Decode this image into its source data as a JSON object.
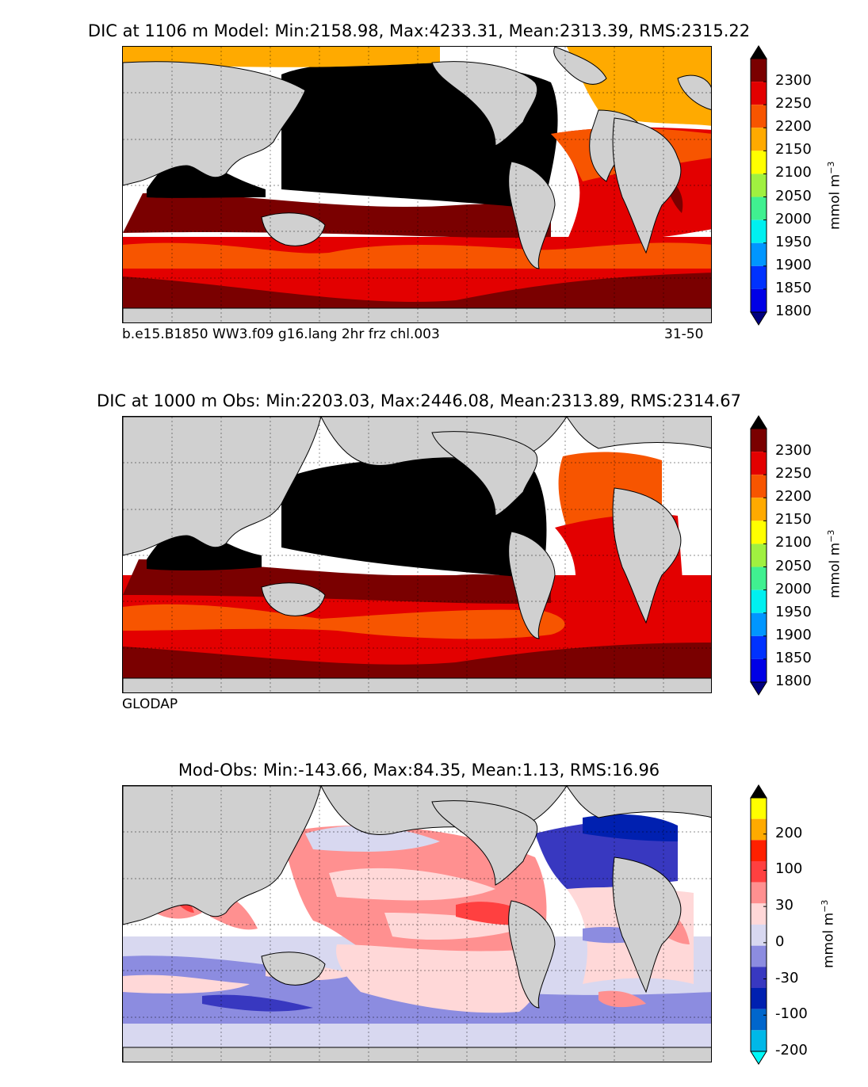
{
  "panels": [
    {
      "title": "DIC at 1106 m Model: Min:2158.98, Max:4233.31, Mean:2313.39, RMS:2315.22",
      "subtitle_left": "b.e15.B1850 WW3.f09 g16.lang 2hr frz chl.003",
      "subtitle_right": "31-50",
      "colorbar_ticks": [
        "2300",
        "2250",
        "2200",
        "2150",
        "2100",
        "2050",
        "2000",
        "1950",
        "1900",
        "1850",
        "1800"
      ],
      "colorbar_colors": [
        "#000000",
        "#7a0000",
        "#e30000",
        "#f75500",
        "#ffaa00",
        "#ffff00",
        "#a0f040",
        "#40f090",
        "#00f0f0",
        "#0096ff",
        "#0032ff",
        "#0000e6",
        "#000080"
      ],
      "unit": "mmol m",
      "unit_exp": "−3"
    },
    {
      "title": "DIC at 1000 m Obs: Min:2203.03, Max:2446.08, Mean:2313.89, RMS:2314.67",
      "subtitle_left": "GLODAP",
      "subtitle_right": "",
      "colorbar_ticks": [
        "2300",
        "2250",
        "2200",
        "2150",
        "2100",
        "2050",
        "2000",
        "1950",
        "1900",
        "1850",
        "1800"
      ],
      "colorbar_colors": [
        "#000000",
        "#7a0000",
        "#e30000",
        "#f75500",
        "#ffaa00",
        "#ffff00",
        "#a0f040",
        "#40f090",
        "#00f0f0",
        "#0096ff",
        "#0032ff",
        "#0000e6",
        "#000080"
      ],
      "unit": "mmol m",
      "unit_exp": "−3"
    },
    {
      "title": "Mod-Obs: Min:-143.66, Max:84.35, Mean:1.13, RMS:16.96",
      "subtitle_left": "",
      "subtitle_right": "",
      "colorbar_ticks": [
        "200",
        "100",
        "30",
        "0",
        "-30",
        "-100",
        "-200"
      ],
      "colorbar_colors": [
        "#000000",
        "#ffff00",
        "#ffaa00",
        "#ff2000",
        "#ff4040",
        "#ff9090",
        "#ffd8d8",
        "#d8d8f0",
        "#8c8ce0",
        "#3838c0",
        "#0020b0",
        "#0066cc",
        "#00b8e8",
        "#00f8f8"
      ],
      "unit": "mmol m",
      "unit_exp": "−3"
    }
  ]
}
